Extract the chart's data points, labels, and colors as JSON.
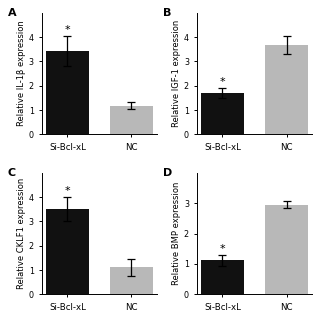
{
  "panels": [
    {
      "label": "A",
      "ylabel": "Relative IL-1β expression",
      "categories": [
        "Si-Bcl-xL",
        "NC"
      ],
      "values": [
        3.42,
        1.18
      ],
      "errors": [
        0.62,
        0.15
      ],
      "colors": [
        "#111111",
        "#b8b8b8"
      ],
      "ylim": [
        0,
        5
      ],
      "yticks": [
        0,
        1,
        2,
        3,
        4
      ],
      "star_bar": 0,
      "star_y": 4.08
    },
    {
      "label": "B",
      "ylabel": "Relative IGF-1 expression",
      "categories": [
        "Si-Bcl-xL",
        "NC"
      ],
      "values": [
        1.7,
        3.68
      ],
      "errors": [
        0.2,
        0.38
      ],
      "colors": [
        "#111111",
        "#b8b8b8"
      ],
      "ylim": [
        0,
        5
      ],
      "yticks": [
        0,
        1,
        2,
        3,
        4
      ],
      "star_bar": 0,
      "star_y": 1.93
    },
    {
      "label": "C",
      "ylabel": "Relative CKLF1 expression",
      "categories": [
        "Si-Bcl-xL",
        "NC"
      ],
      "values": [
        3.52,
        1.12
      ],
      "errors": [
        0.5,
        0.35
      ],
      "colors": [
        "#111111",
        "#b8b8b8"
      ],
      "ylim": [
        0,
        5
      ],
      "yticks": [
        0,
        1,
        2,
        3,
        4
      ],
      "star_bar": 0,
      "star_y": 4.05
    },
    {
      "label": "D",
      "ylabel": "Relative BMP expression",
      "categories": [
        "Si-Bcl-xL",
        "NC"
      ],
      "values": [
        1.12,
        2.95
      ],
      "errors": [
        0.18,
        0.12
      ],
      "colors": [
        "#111111",
        "#b8b8b8"
      ],
      "ylim": [
        0,
        4
      ],
      "yticks": [
        0,
        1,
        2,
        3
      ],
      "star_bar": 0,
      "star_y": 1.32
    }
  ],
  "background_color": "#ffffff",
  "bar_width": 0.38,
  "bar_positions": [
    0.22,
    0.78
  ],
  "x_range": [
    0,
    1
  ],
  "capsize": 3,
  "ylabel_fontsize": 6.0,
  "tick_fontsize": 5.8,
  "xtick_fontsize": 6.2,
  "panel_label_fontsize": 8,
  "star_fontsize": 8
}
